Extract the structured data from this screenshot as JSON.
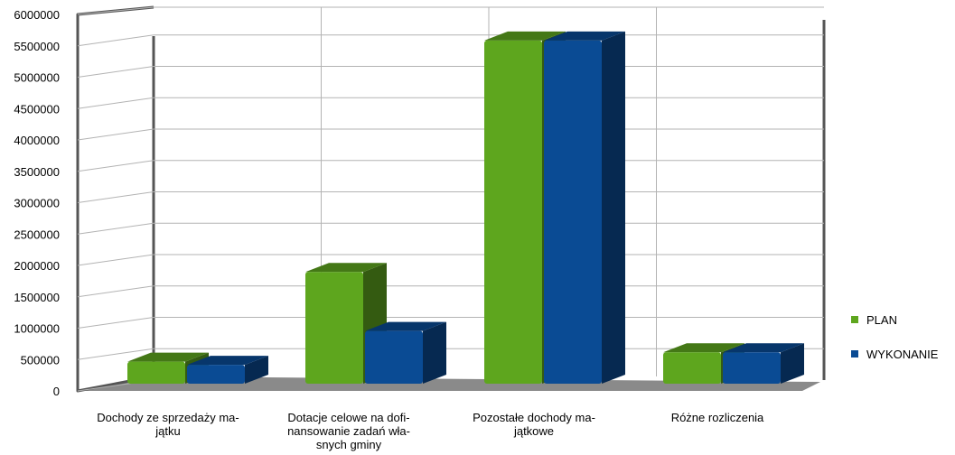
{
  "chart_data": {
    "type": "bar",
    "categories": [
      [
        "Dochody ze sprzedaży ma-",
        "jątku"
      ],
      [
        "Dotacje celowe na dofi-",
        "nansowanie zadań wła-",
        "snych gminy"
      ],
      [
        "Pozostałe dochody ma-",
        "jątkowe"
      ],
      [
        "Różne rozliczenia"
      ]
    ],
    "series": [
      {
        "name": "PLAN",
        "color": "#5ea61e",
        "values": [
          350000,
          1780000,
          5470000,
          500000
        ]
      },
      {
        "name": "WYKONANIE",
        "color": "#0a4b94",
        "values": [
          300000,
          840000,
          5470000,
          500000
        ]
      }
    ],
    "yticks": [
      "0",
      "500000",
      "1000000",
      "1500000",
      "2000000",
      "2500000",
      "3000000",
      "3500000",
      "4000000",
      "4500000",
      "5000000",
      "5500000",
      "6000000"
    ],
    "ylim": [
      0,
      6000000
    ],
    "grid": true,
    "legend_position": "right",
    "colors": {
      "wall": "#555555",
      "floor": "#8a8a8a",
      "grid": "#b3b3b3"
    }
  }
}
